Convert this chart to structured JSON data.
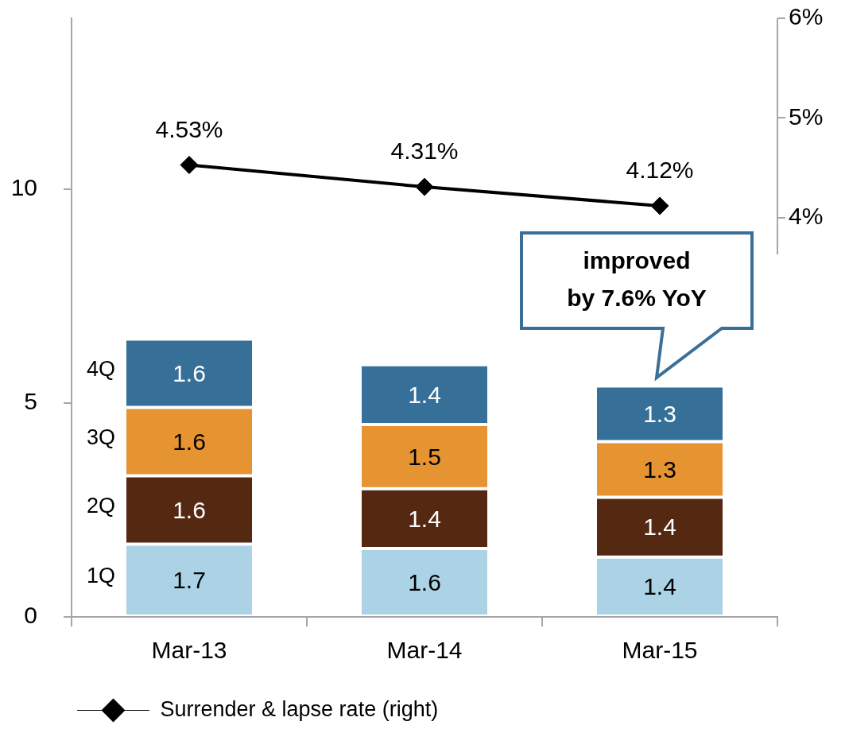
{
  "chart_data": {
    "type": "bar",
    "categories": [
      "Mar-13",
      "Mar-14",
      "Mar-15"
    ],
    "stacked": true,
    "series": [
      {
        "name": "1Q",
        "color": "#abd2e5",
        "values": [
          1.7,
          1.6,
          1.4
        ]
      },
      {
        "name": "2Q",
        "color": "#552812",
        "values": [
          1.6,
          1.4,
          1.4
        ]
      },
      {
        "name": "3Q",
        "color": "#e69331",
        "values": [
          1.6,
          1.5,
          1.3
        ]
      },
      {
        "name": "4Q",
        "color": "#367098",
        "values": [
          1.6,
          1.4,
          1.3
        ]
      },
      {
        "name": "Surrender & lapse rate (right)",
        "type": "line",
        "axis": "y2",
        "color": "#000000",
        "values": [
          4.53,
          4.31,
          4.12
        ],
        "value_labels": [
          "4.53%",
          "4.31%",
          "4.12%"
        ]
      }
    ],
    "ylim": [
      0,
      14
    ],
    "yticks": [
      0,
      5,
      10
    ],
    "y2lim": [
      0,
      6
    ],
    "y2ticks": [
      {
        "value": 4,
        "label": "4%"
      },
      {
        "value": 5,
        "label": "5%"
      },
      {
        "value": 6,
        "label": "6%"
      }
    ],
    "data_labels": true,
    "marker": "diamond",
    "legend": "bottom left",
    "grid": false,
    "annotations": [
      "improved\nby 7.6% YoY"
    ]
  }
}
